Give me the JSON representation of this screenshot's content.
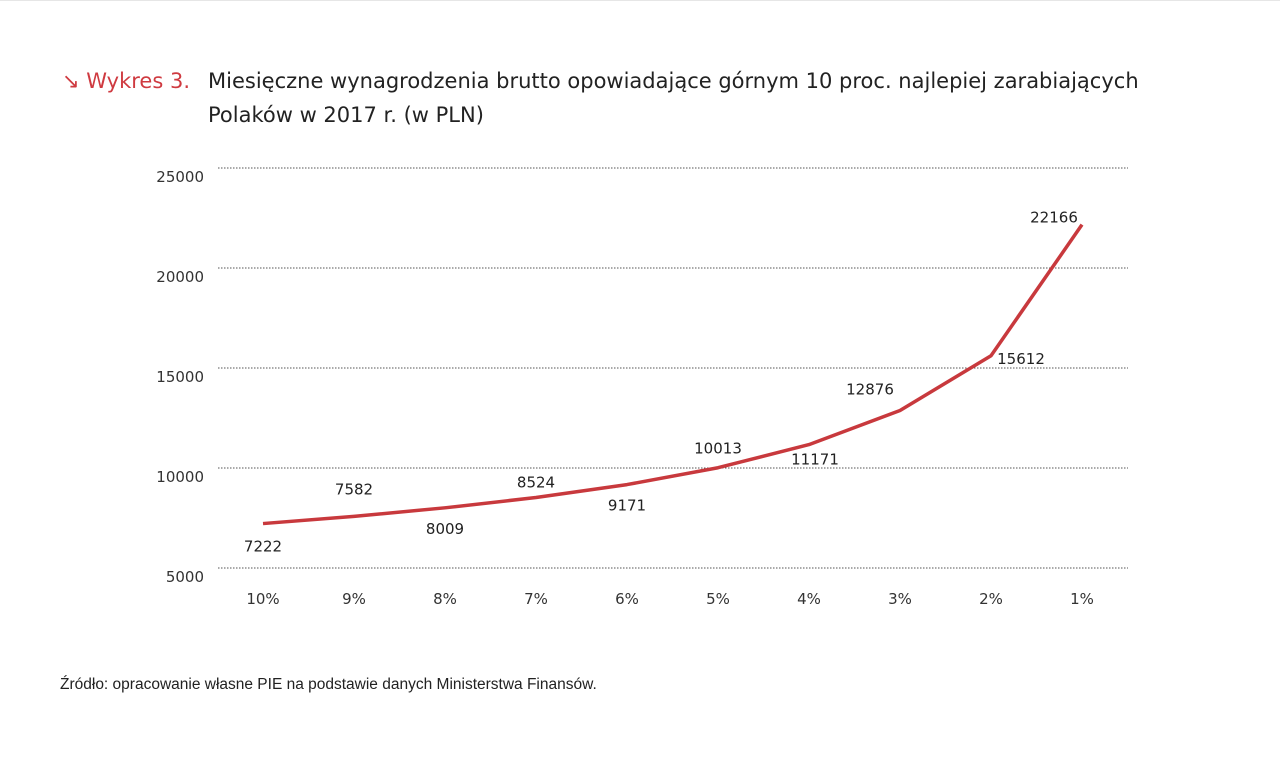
{
  "header": {
    "arrow_icon": "arrow-down-right-icon",
    "tag": "↘ Wykres 3.",
    "title": "Miesięczne wynagrodzenia brutto opowiadające górnym 10 proc. najlepiej zarabiających Polaków w 2017 r. (w PLN)"
  },
  "source": "Źródło: opracowanie własne PIE na podstawie danych Ministerstwa Finansów.",
  "chart_data": {
    "type": "line",
    "title": "Miesięczne wynagrodzenia brutto opowiadające górnym 10 proc. najlepiej zarabiających Polaków w 2017 r. (w PLN)",
    "categories": [
      "10%",
      "9%",
      "8%",
      "7%",
      "6%",
      "5%",
      "4%",
      "3%",
      "2%",
      "1%"
    ],
    "values": [
      7222,
      7582,
      8009,
      8524,
      9171,
      10013,
      11171,
      12876,
      15612,
      22166
    ],
    "data_labels": [
      "7222",
      "7582",
      "8009",
      "8524",
      "9171",
      "10013",
      "11171",
      "12876",
      "15612",
      "22166"
    ],
    "yticks": [
      "5000",
      "10000",
      "15000",
      "20000",
      "25000"
    ],
    "ylim": [
      5000,
      25000
    ],
    "grid": "horizontal dotted",
    "legend": "none",
    "line_color": "#c8393d"
  }
}
